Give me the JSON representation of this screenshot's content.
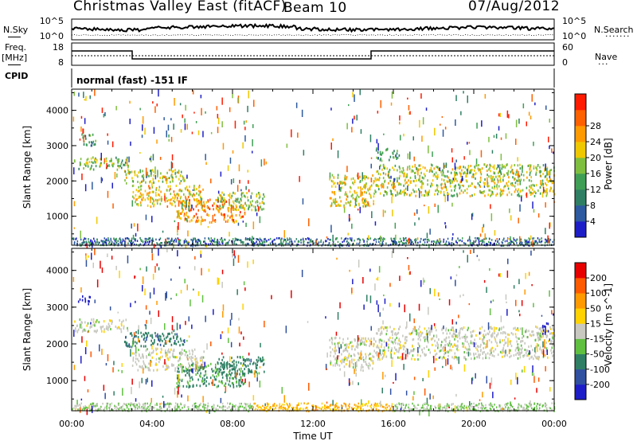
{
  "header": {
    "station_title": "Christmas Valley East (fitACF)",
    "beam": "Beam 10",
    "date": "07/Aug/2012"
  },
  "top_panels": {
    "nsky_label": "N.Sky",
    "nsky_ticks": [
      "10^5",
      "10^0"
    ],
    "nsearch_label": "N.Search",
    "nsearch_ticks": [
      "10^5",
      "10^0"
    ],
    "freq_label_line1": "Freq.",
    "freq_label_line2": "[MHz]",
    "freq_ticks": [
      "18",
      "8"
    ],
    "nave_label": "Nave",
    "nave_ticks": [
      "60",
      "0"
    ],
    "cpid_label": "CPID",
    "cpid_text": "normal (fast) -151 IF"
  },
  "chart_data": [
    {
      "type": "heatmap",
      "name": "power-panel",
      "xlabel": "",
      "ylabel": "Slant Range [km]",
      "yticks": [
        1000,
        2000,
        3000,
        4000
      ],
      "ylim": [
        180,
        4600
      ],
      "xlim": [
        0,
        24
      ],
      "colorbar_label": "Power [dB]",
      "colorbar_ticks": [
        4,
        8,
        12,
        16,
        20,
        24,
        28
      ],
      "colorbar_colors": [
        "#1e1ec8",
        "#2d5aa0",
        "#2f7f64",
        "#3f9f55",
        "#7fbf3f",
        "#f0c800",
        "#ff9a00",
        "#ff6000",
        "#ff1a00"
      ],
      "echo_bands": [
        {
          "t0": 0.1,
          "t1": 2.8,
          "r0": 2350,
          "r1": 2700,
          "level": 0.45
        },
        {
          "t0": 0.5,
          "t1": 1.2,
          "r0": 3000,
          "r1": 3350,
          "level": 0.3
        },
        {
          "t0": 2.6,
          "t1": 5.6,
          "r0": 1950,
          "r1": 2350,
          "level": 0.55
        },
        {
          "t0": 3.0,
          "t1": 6.6,
          "r0": 1300,
          "r1": 1900,
          "level": 0.65
        },
        {
          "t0": 5.2,
          "t1": 8.6,
          "r0": 850,
          "r1": 1500,
          "level": 0.8
        },
        {
          "t0": 7.2,
          "t1": 9.6,
          "r0": 1200,
          "r1": 1700,
          "level": 0.5
        },
        {
          "t0": 12.8,
          "t1": 15.1,
          "r0": 1300,
          "r1": 2200,
          "level": 0.6
        },
        {
          "t0": 15.1,
          "t1": 24.0,
          "r0": 1600,
          "r1": 2500,
          "level": 0.55
        },
        {
          "t0": 15.1,
          "t1": 16.3,
          "r0": 2600,
          "r1": 2950,
          "level": 0.35
        }
      ]
    },
    {
      "type": "heatmap",
      "name": "velocity-panel",
      "xlabel": "Time UT",
      "ylabel": "Slant Range [km]",
      "yticks": [
        1000,
        2000,
        3000,
        4000
      ],
      "ylim": [
        180,
        4600
      ],
      "xlim": [
        0,
        24
      ],
      "xticks": [
        "00:00",
        "04:00",
        "08:00",
        "12:00",
        "16:00",
        "20:00",
        "00:00"
      ],
      "colorbar_label": "Velocity [m s^-1]",
      "colorbar_ticks": [
        200,
        100,
        50,
        15,
        -15,
        -50,
        -100,
        -200
      ],
      "colorbar_colors": [
        "#1e1ec8",
        "#3050a0",
        "#2f7f64",
        "#5fc040",
        "#c8c8c0",
        "#ffd200",
        "#ff9a00",
        "#ff5a00",
        "#e80000"
      ],
      "echo_bands": [
        {
          "t0": 0.1,
          "t1": 2.8,
          "r0": 2350,
          "r1": 2700,
          "vel": 0
        },
        {
          "t0": 0.3,
          "t1": 0.9,
          "r0": 3100,
          "r1": 3350,
          "vel": 220
        },
        {
          "t0": 2.6,
          "t1": 5.6,
          "r0": 1950,
          "r1": 2350,
          "vel": 60
        },
        {
          "t0": 3.0,
          "t1": 6.6,
          "r0": 1300,
          "r1": 1900,
          "vel": 0
        },
        {
          "t0": 5.2,
          "t1": 8.6,
          "r0": 850,
          "r1": 1500,
          "vel": 40
        },
        {
          "t0": 7.2,
          "t1": 9.6,
          "r0": 1200,
          "r1": 1700,
          "vel": 50
        },
        {
          "t0": 12.8,
          "t1": 15.1,
          "r0": 1300,
          "r1": 2200,
          "vel": 0
        },
        {
          "t0": 15.1,
          "t1": 24.0,
          "r0": 1600,
          "r1": 2500,
          "vel": 0
        },
        {
          "t0": 23.4,
          "t1": 23.8,
          "r0": 2300,
          "r1": 2600,
          "vel": 220
        }
      ]
    }
  ]
}
